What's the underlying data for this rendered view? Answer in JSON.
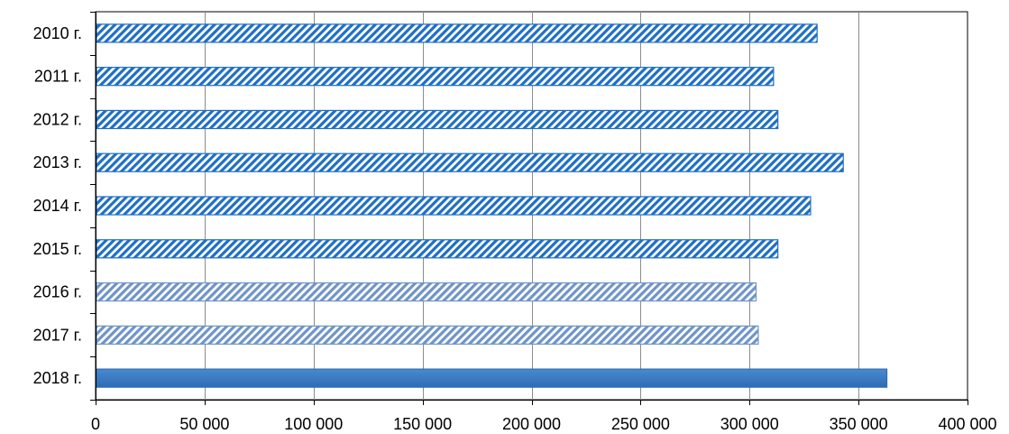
{
  "chart_data": {
    "type": "bar",
    "orientation": "horizontal",
    "title": "",
    "xlabel": "",
    "ylabel": "",
    "categories": [
      "2010 г.",
      "2011 г.",
      "2012 г.",
      "2013 г.",
      "2014 г.",
      "2015 г.",
      "2016 г.",
      "2017 г.",
      "2018 г."
    ],
    "values": [
      331000,
      311000,
      313000,
      343000,
      328000,
      313000,
      303000,
      304000,
      363000
    ],
    "bar_styles": [
      "hatched-dark",
      "hatched-dark",
      "hatched-dark",
      "hatched-dark",
      "hatched-dark",
      "hatched-dark",
      "hatched-light",
      "hatched-light",
      "solid"
    ],
    "xlim": [
      0,
      400000
    ],
    "xticks": [
      0,
      50000,
      100000,
      150000,
      200000,
      250000,
      300000,
      350000,
      400000
    ],
    "xtick_labels": [
      "0",
      "50 000",
      "100 000",
      "150 000",
      "200 000",
      "250 000",
      "300 000",
      "350 000",
      "400 000"
    ],
    "grid": "vertical",
    "legend": "none",
    "colors": {
      "bar_dark": "#1f6fc4",
      "bar_light": "#6f94c7",
      "bar_solid": "#2e6db4",
      "bar_solid_top": "#4a89d0",
      "grid": "#8c8c8c",
      "axis": "#000000"
    }
  }
}
